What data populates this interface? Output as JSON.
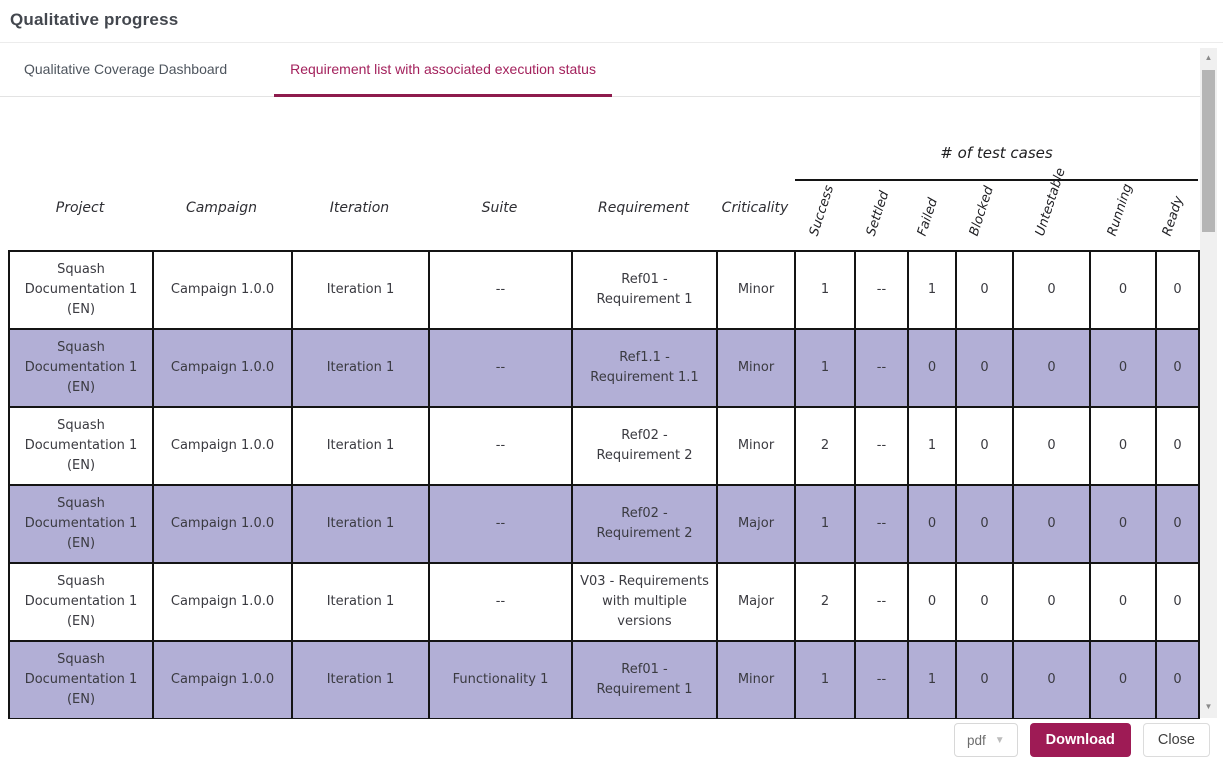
{
  "colors": {
    "accent": "#9E1B55",
    "tab_active_text": "#A3215C",
    "tab_underline": "#8E1B4D",
    "row_alternate": "#B2AFD6",
    "table_border": "#141414"
  },
  "dialog": {
    "title": "Qualitative progress"
  },
  "tabs": [
    {
      "label": "Qualitative Coverage Dashboard",
      "active": false
    },
    {
      "label": "Requirement list with associated execution status",
      "active": true
    }
  ],
  "report": {
    "group_header": "# of test cases",
    "columns": [
      "Project",
      "Campaign",
      "Iteration",
      "Suite",
      "Requirement",
      "Criticality"
    ],
    "count_columns": [
      "Success",
      "Settled",
      "Failed",
      "Blocked",
      "Untestable",
      "Running",
      "Ready"
    ],
    "rows": [
      {
        "cells": [
          "Squash Documentation 1 (EN)",
          "Campaign 1.0.0",
          "Iteration 1",
          "--",
          "Ref01 - Requirement 1",
          "Minor"
        ],
        "counts": [
          "1",
          "--",
          "1",
          "0",
          "0",
          "0",
          "0"
        ]
      },
      {
        "cells": [
          "Squash Documentation 1 (EN)",
          "Campaign 1.0.0",
          "Iteration 1",
          "--",
          "Ref1.1 - Requirement 1.1",
          "Minor"
        ],
        "counts": [
          "1",
          "--",
          "0",
          "0",
          "0",
          "0",
          "0"
        ]
      },
      {
        "cells": [
          "Squash Documentation 1 (EN)",
          "Campaign 1.0.0",
          "Iteration 1",
          "--",
          "Ref02 - Requirement 2",
          "Minor"
        ],
        "counts": [
          "2",
          "--",
          "1",
          "0",
          "0",
          "0",
          "0"
        ]
      },
      {
        "cells": [
          "Squash Documentation 1 (EN)",
          "Campaign 1.0.0",
          "Iteration 1",
          "--",
          "Ref02 - Requirement 2",
          "Major"
        ],
        "counts": [
          "1",
          "--",
          "0",
          "0",
          "0",
          "0",
          "0"
        ]
      },
      {
        "cells": [
          "Squash Documentation 1 (EN)",
          "Campaign 1.0.0",
          "Iteration 1",
          "--",
          "V03 - Requirements with multiple versions",
          "Major"
        ],
        "counts": [
          "2",
          "--",
          "0",
          "0",
          "0",
          "0",
          "0"
        ]
      },
      {
        "cells": [
          "Squash Documentation 1 (EN)",
          "Campaign 1.0.0",
          "Iteration 1",
          "Functionality 1",
          "Ref01 - Requirement 1",
          "Minor"
        ],
        "counts": [
          "1",
          "--",
          "1",
          "0",
          "0",
          "0",
          "0"
        ]
      }
    ]
  },
  "footer": {
    "format_value": "pdf",
    "download_label": "Download",
    "close_label": "Close"
  }
}
